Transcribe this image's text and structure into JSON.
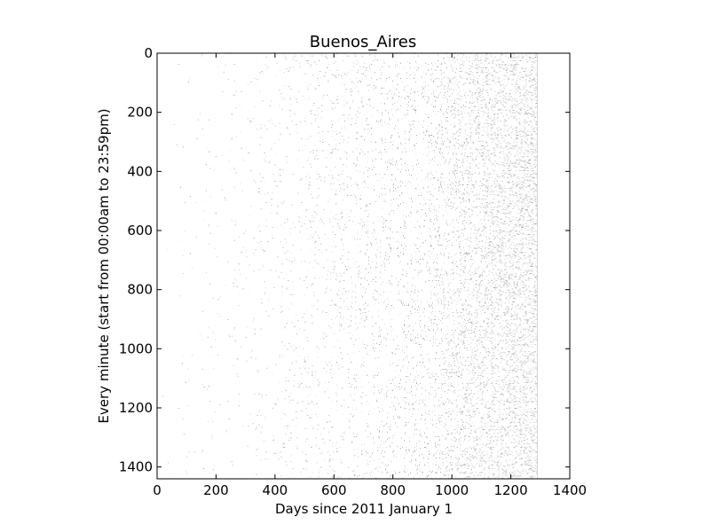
{
  "chart_data": {
    "type": "heatmap",
    "title": "Buenos_Aires",
    "xlabel": "Days since 2011 January 1",
    "ylabel": "Every minute (start from 00:00am to 23:59pm)",
    "xlim": [
      0,
      1400
    ],
    "ylim": [
      1440,
      0
    ],
    "data_extent_x": [
      0,
      1290
    ],
    "xticks": [
      0,
      200,
      400,
      600,
      800,
      1000,
      1200,
      1400
    ],
    "xtick_labels": [
      "0",
      "200",
      "400",
      "600",
      "800",
      "1000",
      "1200",
      "1400"
    ],
    "yticks": [
      0,
      200,
      400,
      600,
      800,
      1000,
      1200,
      1400
    ],
    "ytick_labels": [
      "0",
      "200",
      "400",
      "600",
      "800",
      "1000",
      "1200",
      "1400"
    ],
    "colormap": "Greys",
    "density_profile": [
      {
        "day": 0,
        "density": 0.0
      },
      {
        "day": 300,
        "density": 0.01
      },
      {
        "day": 600,
        "density": 0.03
      },
      {
        "day": 900,
        "density": 0.05
      },
      {
        "day": 1040,
        "density": 0.12
      },
      {
        "day": 1200,
        "density": 0.16
      },
      {
        "day": 1290,
        "density": 0.2
      }
    ]
  },
  "colors": {
    "background": "#ffffff",
    "axis": "#000000",
    "marks": "#7a7a7a"
  }
}
